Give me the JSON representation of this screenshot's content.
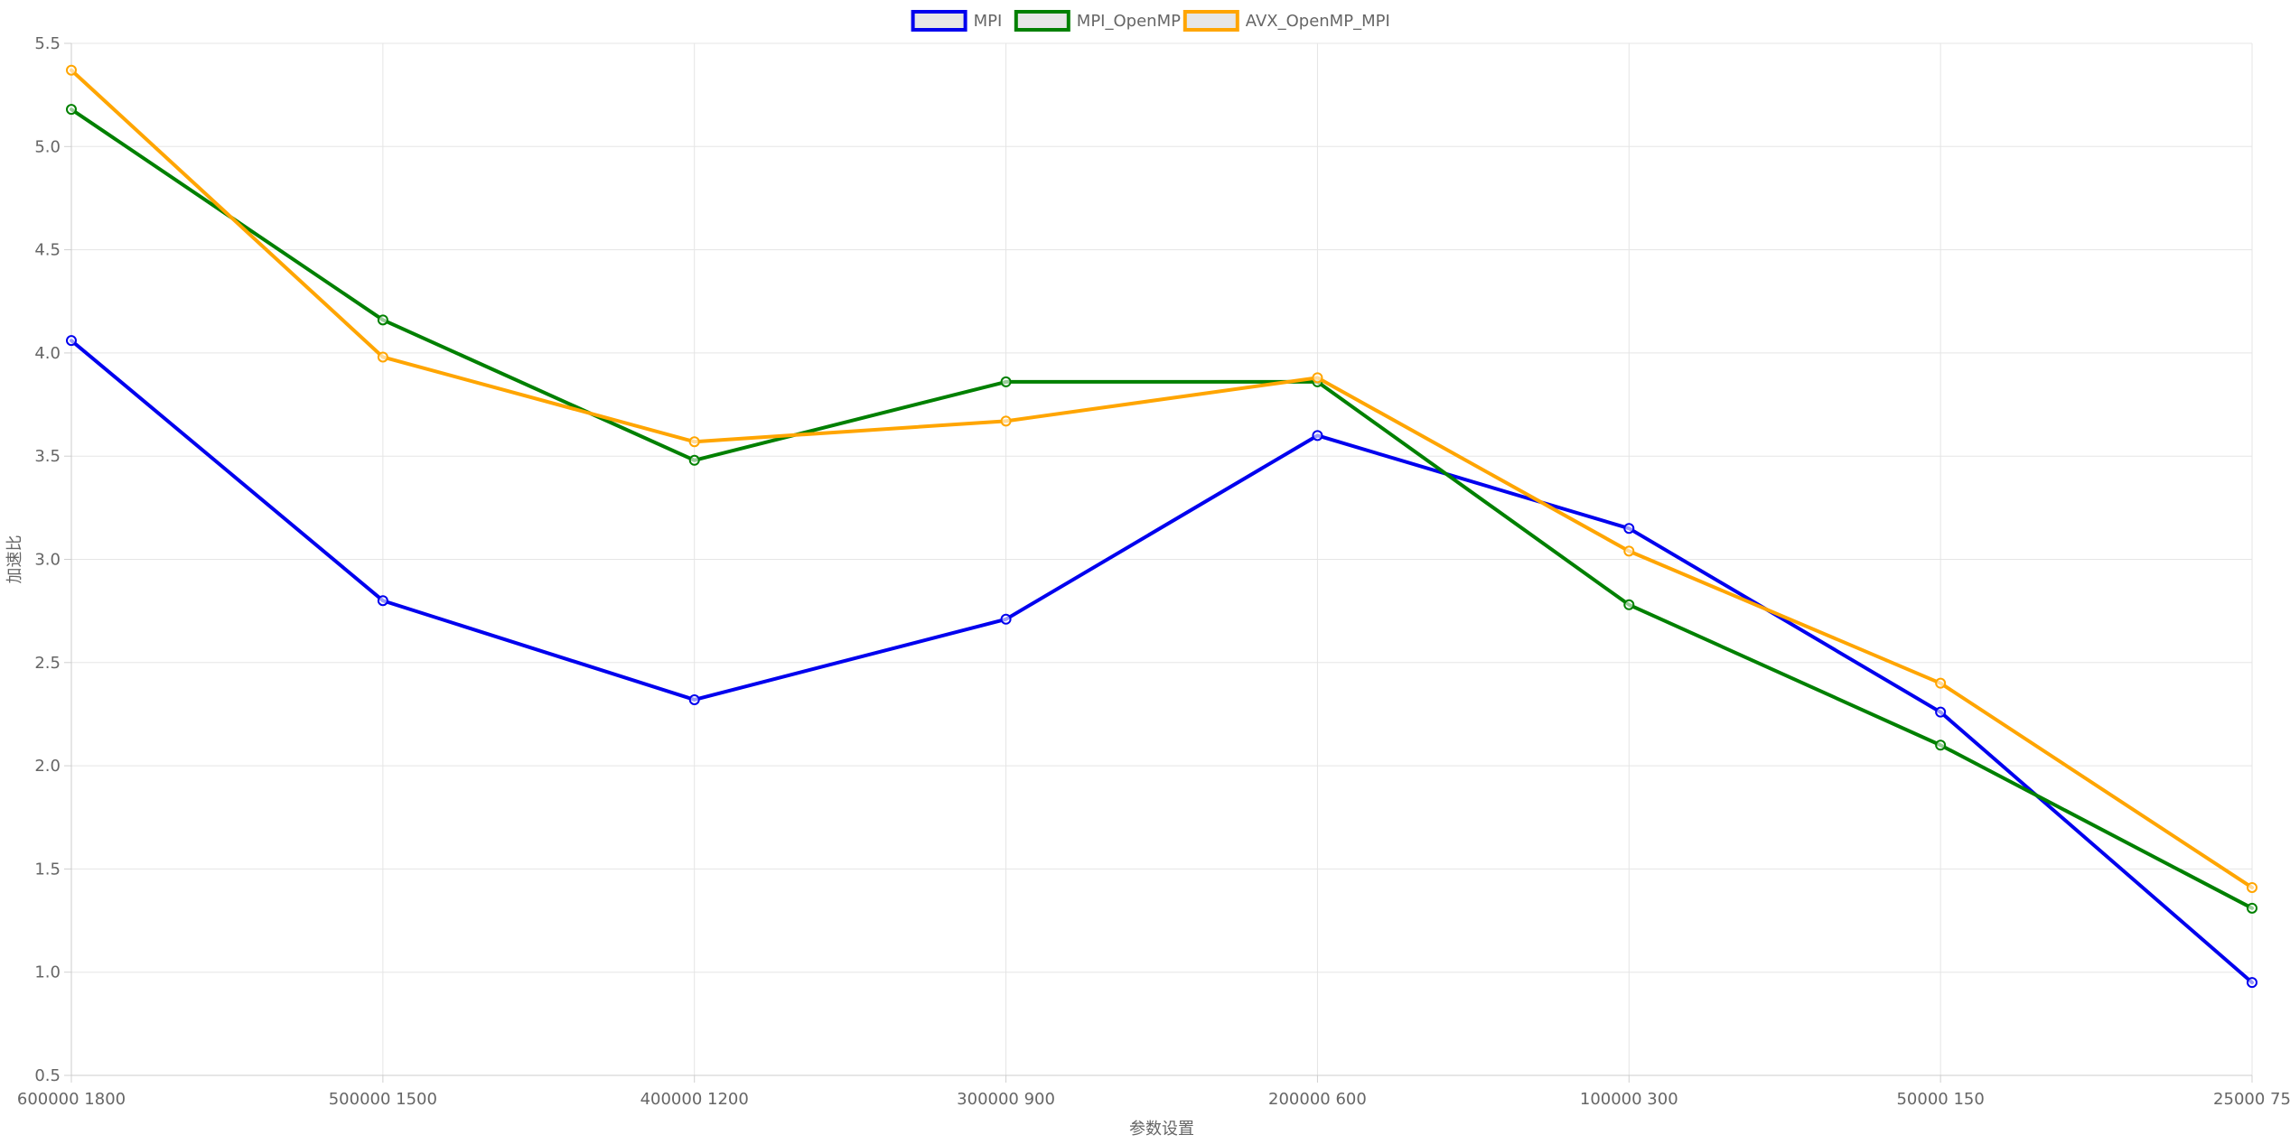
{
  "chart_data": {
    "type": "line",
    "title": "",
    "xlabel": "参数设置",
    "ylabel": "加速比",
    "categories": [
      "600000 1800",
      "500000 1500",
      "400000 1200",
      "300000 900",
      "200000 600",
      "100000 300",
      "50000 150",
      "25000 75"
    ],
    "ylim": [
      0.5,
      5.5
    ],
    "yticks": [
      "0.5",
      "1.0",
      "1.5",
      "2.0",
      "2.5",
      "3.0",
      "3.5",
      "4.0",
      "4.5",
      "5.0",
      "5.5"
    ],
    "grid": true,
    "legend_position": "top-center",
    "series": [
      {
        "name": "MPI",
        "color": "#0000ee",
        "values": [
          4.06,
          2.8,
          2.32,
          2.71,
          3.6,
          3.15,
          2.26,
          0.95
        ]
      },
      {
        "name": "MPI_OpenMP",
        "color": "#008000",
        "values": [
          5.18,
          4.16,
          3.48,
          3.86,
          3.86,
          2.78,
          2.1,
          1.31
        ]
      },
      {
        "name": "AVX_OpenMP_MPI",
        "color": "#ffa500",
        "values": [
          5.37,
          3.98,
          3.57,
          3.67,
          3.88,
          3.04,
          2.4,
          1.41
        ]
      }
    ]
  }
}
